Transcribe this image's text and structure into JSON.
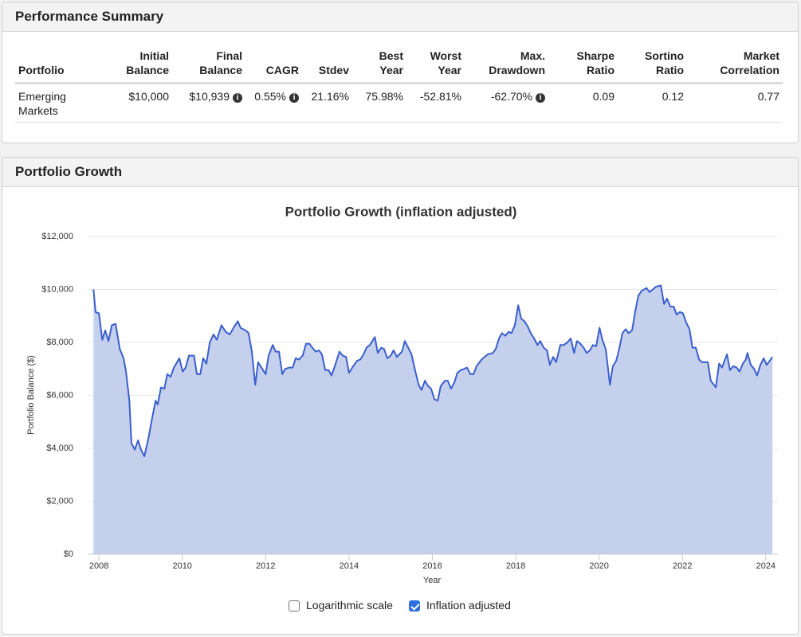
{
  "performance": {
    "title": "Performance Summary",
    "headers": [
      "Portfolio",
      "Initial\nBalance",
      "Final\nBalance",
      "CAGR",
      "Stdev",
      "Best\nYear",
      "Worst\nYear",
      "Max.\nDrawdown",
      "Sharpe\nRatio",
      "Sortino\nRatio",
      "Market\nCorrelation"
    ],
    "rows": [
      [
        "Emerging\nMarkets",
        "$10,000",
        "$10,939",
        "0.55%",
        "21.16%",
        "75.98%",
        "-52.81%",
        "-62.70%",
        "0.09",
        "0.12",
        "0.77"
      ]
    ]
  },
  "growth_panel": {
    "title": "Portfolio Growth"
  },
  "controls": [
    {
      "label": "Logarithmic scale",
      "checked": false
    },
    {
      "label": "Inflation adjusted",
      "checked": true
    }
  ],
  "chart_data": {
    "type": "area",
    "title": "Portfolio Growth (inflation adjusted)",
    "x_label": "Year",
    "y_label": "Portfolio Balance ($)",
    "log_scale": false,
    "grid": true,
    "line_color": "#3a5fcd",
    "fill_color": "#c5d0ed",
    "xlim": [
      2007.73,
      2024.29
    ],
    "xticks": [
      2008,
      2010,
      2012,
      2014,
      2016,
      2018,
      2020,
      2022,
      2024
    ],
    "ylim": [
      0,
      12000
    ],
    "yticks": [
      {
        "value": 0,
        "label": "$0"
      },
      {
        "value": 2000,
        "label": "$2,000"
      },
      {
        "value": 4000,
        "label": "$4,000"
      },
      {
        "value": 6000,
        "label": "$6,000"
      },
      {
        "value": 8000,
        "label": "$8,000"
      },
      {
        "value": 10000,
        "label": "$10,000"
      },
      {
        "value": 12000,
        "label": "$12,000"
      }
    ],
    "x": [
      2007.87,
      2007.92,
      2008.0,
      2008.08,
      2008.15,
      2008.23,
      2008.31,
      2008.4,
      2008.5,
      2008.59,
      2008.65,
      2008.73,
      2008.78,
      2008.86,
      2008.94,
      2009.01,
      2009.09,
      2009.19,
      2009.26,
      2009.36,
      2009.41,
      2009.49,
      2009.57,
      2009.64,
      2009.72,
      2009.8,
      2009.93,
      2010.01,
      2010.08,
      2010.16,
      2010.28,
      2010.35,
      2010.43,
      2010.5,
      2010.58,
      2010.66,
      2010.75,
      2010.83,
      2010.94,
      2011.04,
      2011.14,
      2011.23,
      2011.33,
      2011.4,
      2011.52,
      2011.59,
      2011.67,
      2011.75,
      2011.82,
      2011.92,
      2012.0,
      2012.07,
      2012.17,
      2012.24,
      2012.32,
      2012.4,
      2012.47,
      2012.57,
      2012.65,
      2012.72,
      2012.8,
      2012.89,
      2012.97,
      2013.05,
      2013.12,
      2013.2,
      2013.28,
      2013.35,
      2013.43,
      2013.51,
      2013.58,
      2013.66,
      2013.77,
      2013.85,
      2013.93,
      2014.0,
      2014.08,
      2014.19,
      2014.27,
      2014.35,
      2014.42,
      2014.5,
      2014.62,
      2014.69,
      2014.77,
      2014.84,
      2014.92,
      2015.0,
      2015.07,
      2015.15,
      2015.27,
      2015.34,
      2015.42,
      2015.5,
      2015.57,
      2015.67,
      2015.74,
      2015.82,
      2015.9,
      2015.97,
      2016.05,
      2016.13,
      2016.2,
      2016.3,
      2016.37,
      2016.45,
      2016.53,
      2016.6,
      2016.68,
      2016.76,
      2016.83,
      2016.91,
      2016.99,
      2017.06,
      2017.18,
      2017.25,
      2017.33,
      2017.45,
      2017.52,
      2017.6,
      2017.67,
      2017.75,
      2017.83,
      2017.9,
      2017.98,
      2018.06,
      2018.13,
      2018.21,
      2018.29,
      2018.36,
      2018.44,
      2018.52,
      2018.59,
      2018.67,
      2018.75,
      2018.82,
      2018.9,
      2018.97,
      2019.07,
      2019.15,
      2019.24,
      2019.32,
      2019.4,
      2019.47,
      2019.55,
      2019.63,
      2019.7,
      2019.78,
      2019.85,
      2019.93,
      2020.01,
      2020.08,
      2020.16,
      2020.26,
      2020.33,
      2020.41,
      2020.49,
      2020.56,
      2020.64,
      2020.71,
      2020.79,
      2020.87,
      2020.94,
      2021.02,
      2021.14,
      2021.21,
      2021.29,
      2021.36,
      2021.48,
      2021.56,
      2021.63,
      2021.71,
      2021.79,
      2021.86,
      2021.94,
      2022.01,
      2022.09,
      2022.17,
      2022.24,
      2022.32,
      2022.4,
      2022.47,
      2022.61,
      2022.68,
      2022.8,
      2022.88,
      2022.95,
      2023.07,
      2023.14,
      2023.22,
      2023.3,
      2023.37,
      2023.45,
      2023.52,
      2023.56,
      2023.64,
      2023.72,
      2023.79,
      2023.87,
      2023.95,
      2024.02,
      2024.16
    ],
    "values": [
      10000,
      9150,
      9100,
      8100,
      8450,
      8050,
      8650,
      8700,
      7750,
      7400,
      6900,
      5800,
      4200,
      3950,
      4300,
      3950,
      3700,
      4400,
      5000,
      5800,
      5650,
      6300,
      6250,
      6800,
      6700,
      7050,
      7400,
      6900,
      7050,
      7500,
      7500,
      6800,
      6800,
      7400,
      7200,
      8000,
      8300,
      8100,
      8650,
      8400,
      8300,
      8550,
      8800,
      8550,
      8450,
      8350,
      7650,
      6400,
      7250,
      7000,
      6800,
      7500,
      7900,
      7650,
      7650,
      6800,
      7000,
      7050,
      7050,
      7400,
      7350,
      7500,
      7950,
      7950,
      7800,
      7650,
      7700,
      7550,
      6950,
      6950,
      6750,
      7100,
      7650,
      7500,
      7450,
      6850,
      7050,
      7300,
      7350,
      7550,
      7800,
      7900,
      8200,
      7600,
      7800,
      7750,
      7400,
      7500,
      7700,
      7450,
      7650,
      8050,
      7800,
      7550,
      7050,
      6400,
      6200,
      6550,
      6350,
      6250,
      5850,
      5800,
      6350,
      6550,
      6550,
      6250,
      6500,
      6850,
      6950,
      7000,
      7050,
      6800,
      6800,
      7100,
      7350,
      7450,
      7550,
      7600,
      7750,
      8150,
      8350,
      8250,
      8400,
      8350,
      8650,
      9400,
      8900,
      8800,
      8600,
      8350,
      8150,
      7900,
      8050,
      7800,
      7700,
      7150,
      7450,
      7250,
      7900,
      7900,
      8000,
      8150,
      7600,
      8050,
      7950,
      7800,
      7600,
      7700,
      7900,
      7850,
      8550,
      8100,
      7750,
      6400,
      7100,
      7300,
      7800,
      8350,
      8500,
      8350,
      8450,
      9200,
      9750,
      9950,
      10050,
      9900,
      10000,
      10100,
      10150,
      9450,
      9650,
      9350,
      9350,
      9050,
      9150,
      9100,
      8750,
      8500,
      7800,
      7800,
      7350,
      7250,
      7250,
      6550,
      6300,
      7200,
      7050,
      7550,
      6950,
      7100,
      7050,
      6900,
      7200,
      7350,
      7600,
      7150,
      7000,
      6750,
      7150,
      7400,
      7150,
      7450
    ]
  }
}
